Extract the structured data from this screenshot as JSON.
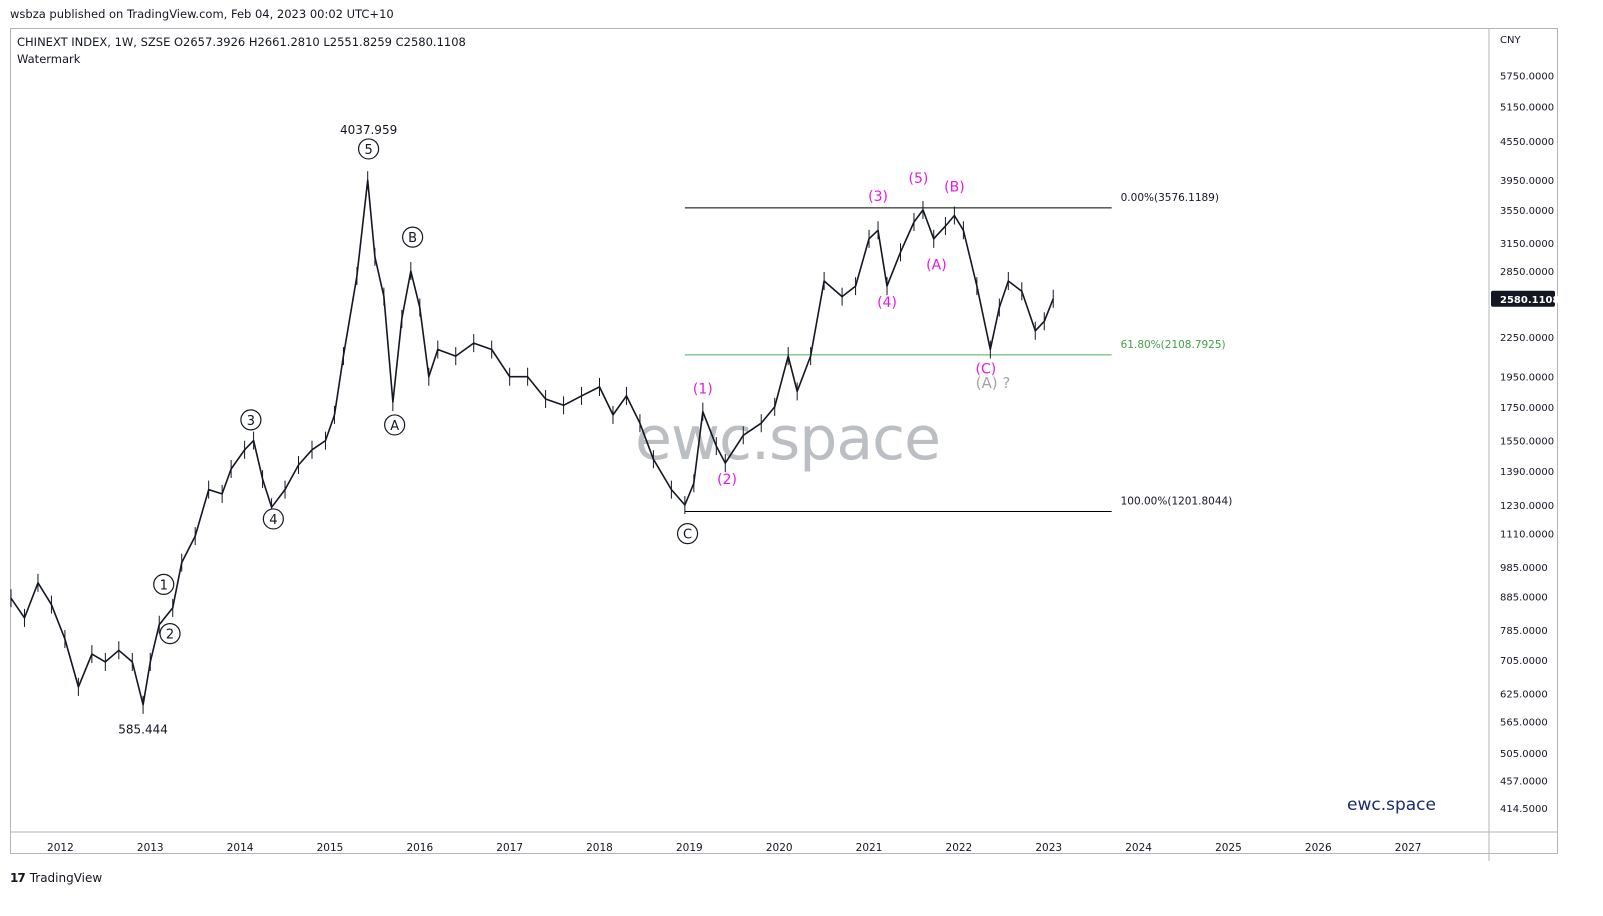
{
  "published": "wsbza published on TradingView.com, Feb 04, 2023 00:02 UTC+10",
  "legend": {
    "symbol_line": "CHINEXT INDEX, 1W, SZSE  O2657.3926  H2661.2810  L2551.8259  C2580.1108",
    "watermark_label": "Watermark"
  },
  "footer": {
    "logo": "17",
    "name": "TradingView"
  },
  "brand": "ewc.space",
  "watermark_text": "ewc.space",
  "colors": {
    "wave_primary": "#131722",
    "wave_magenta": "#e619e6",
    "fib_line": "#000000",
    "fib_green": "#4caf50",
    "price_label_bg": "#131722",
    "alt_label": "#a6a6a6"
  },
  "chart_data": {
    "type": "line",
    "title": "CHINEXT INDEX",
    "currency_label": "CNY",
    "y_scale": "log",
    "ylim": [
      380,
      6800
    ],
    "xlim": [
      2011.45,
      2027.9
    ],
    "x_ticks": [
      "2012",
      "2013",
      "2014",
      "2015",
      "2016",
      "2017",
      "2018",
      "2019",
      "2020",
      "2021",
      "2022",
      "2023",
      "2024",
      "2025",
      "2026",
      "2027"
    ],
    "y_ticks": [
      "5750.0000",
      "5150.0000",
      "4550.0000",
      "3950.0000",
      "3550.0000",
      "3150.0000",
      "2850.0000",
      "2580.1108",
      "2250.0000",
      "1950.0000",
      "1750.0000",
      "1550.0000",
      "1390.0000",
      "1230.0000",
      "1110.0000",
      "985.0000",
      "885.0000",
      "785.0000",
      "705.0000",
      "625.0000",
      "565.0000",
      "505.0000",
      "457.0000",
      "414.5000"
    ],
    "last_price": "2580.1108",
    "series": [
      {
        "values": [
          [
            2011.45,
            880
          ],
          [
            2011.6,
            820
          ],
          [
            2011.75,
            930
          ],
          [
            2011.9,
            860
          ],
          [
            2012.05,
            760
          ],
          [
            2012.2,
            640
          ],
          [
            2012.35,
            720
          ],
          [
            2012.5,
            700
          ],
          [
            2012.65,
            730
          ],
          [
            2012.8,
            700
          ],
          [
            2012.92,
            600
          ],
          [
            2013.0,
            700
          ],
          [
            2013.1,
            800
          ],
          [
            2013.25,
            850
          ],
          [
            2013.35,
            1000
          ],
          [
            2013.5,
            1100
          ],
          [
            2013.65,
            1300
          ],
          [
            2013.8,
            1280
          ],
          [
            2013.9,
            1400
          ],
          [
            2014.05,
            1500
          ],
          [
            2014.15,
            1550
          ],
          [
            2014.25,
            1350
          ],
          [
            2014.35,
            1220
          ],
          [
            2014.5,
            1300
          ],
          [
            2014.65,
            1420
          ],
          [
            2014.8,
            1500
          ],
          [
            2014.95,
            1550
          ],
          [
            2015.05,
            1700
          ],
          [
            2015.15,
            2100
          ],
          [
            2015.3,
            2800
          ],
          [
            2015.42,
            3950
          ],
          [
            2015.5,
            3000
          ],
          [
            2015.6,
            2600
          ],
          [
            2015.7,
            1780
          ],
          [
            2015.8,
            2400
          ],
          [
            2015.9,
            2850
          ],
          [
            2016.0,
            2500
          ],
          [
            2016.1,
            1950
          ],
          [
            2016.2,
            2150
          ],
          [
            2016.4,
            2100
          ],
          [
            2016.6,
            2200
          ],
          [
            2016.8,
            2150
          ],
          [
            2017.0,
            1950
          ],
          [
            2017.2,
            1950
          ],
          [
            2017.4,
            1800
          ],
          [
            2017.6,
            1760
          ],
          [
            2017.8,
            1820
          ],
          [
            2018.0,
            1880
          ],
          [
            2018.15,
            1700
          ],
          [
            2018.3,
            1820
          ],
          [
            2018.45,
            1650
          ],
          [
            2018.6,
            1450
          ],
          [
            2018.8,
            1300
          ],
          [
            2018.95,
            1230
          ],
          [
            2019.05,
            1330
          ],
          [
            2019.15,
            1720
          ],
          [
            2019.3,
            1520
          ],
          [
            2019.4,
            1430
          ],
          [
            2019.6,
            1580
          ],
          [
            2019.8,
            1650
          ],
          [
            2019.95,
            1750
          ],
          [
            2020.1,
            2100
          ],
          [
            2020.2,
            1850
          ],
          [
            2020.35,
            2100
          ],
          [
            2020.5,
            2750
          ],
          [
            2020.7,
            2600
          ],
          [
            2020.85,
            2700
          ],
          [
            2021.0,
            3200
          ],
          [
            2021.1,
            3300
          ],
          [
            2021.2,
            2700
          ],
          [
            2021.35,
            3050
          ],
          [
            2021.5,
            3400
          ],
          [
            2021.6,
            3550
          ],
          [
            2021.72,
            3200
          ],
          [
            2021.85,
            3350
          ],
          [
            2021.95,
            3480
          ],
          [
            2022.05,
            3300
          ],
          [
            2022.2,
            2700
          ],
          [
            2022.35,
            2150
          ],
          [
            2022.45,
            2500
          ],
          [
            2022.55,
            2750
          ],
          [
            2022.7,
            2650
          ],
          [
            2022.85,
            2300
          ],
          [
            2022.95,
            2380
          ],
          [
            2023.05,
            2580
          ]
        ]
      }
    ],
    "price_marks": [
      {
        "label": "4037.959",
        "x": 2015.43,
        "y": 4037.959
      },
      {
        "label": "585.444",
        "x": 2012.92,
        "y": 585.444
      }
    ],
    "fib_levels": [
      {
        "label": "0.00%(3576.1189)",
        "value": 3576.1189,
        "x_start": 2018.95,
        "x_end": 2023.7
      },
      {
        "label": "61.80%(2108.7925)",
        "value": 2108.7925,
        "x_start": 2018.95,
        "x_end": 2023.7
      },
      {
        "label": "100.00%(1201.8044)",
        "value": 1201.8044,
        "x_start": 2018.95,
        "x_end": 2023.7
      }
    ],
    "wave_labels_circled": [
      {
        "label": "1",
        "x": 2013.15,
        "y": 925
      },
      {
        "label": "2",
        "x": 2013.22,
        "y": 775
      },
      {
        "label": "3",
        "x": 2014.12,
        "y": 1670
      },
      {
        "label": "4",
        "x": 2014.37,
        "y": 1170
      },
      {
        "label": "5",
        "x": 2015.43,
        "y": 4420
      },
      {
        "label": "A",
        "x": 2015.72,
        "y": 1640
      },
      {
        "label": "B",
        "x": 2015.92,
        "y": 3220
      },
      {
        "label": "C",
        "x": 2018.98,
        "y": 1110
      }
    ],
    "wave_labels_paren": [
      {
        "label": "(1)",
        "x": 2019.15,
        "y": 1870
      },
      {
        "label": "(2)",
        "x": 2019.42,
        "y": 1350
      },
      {
        "label": "(3)",
        "x": 2021.1,
        "y": 3730
      },
      {
        "label": "(4)",
        "x": 2021.2,
        "y": 2550
      },
      {
        "label": "(5)",
        "x": 2021.55,
        "y": 3980
      },
      {
        "label": "(B)",
        "x": 2021.95,
        "y": 3860
      },
      {
        "label": "(A)",
        "x": 2021.75,
        "y": 2920
      },
      {
        "label": "(C)",
        "x": 2022.3,
        "y": 2010
      }
    ],
    "alt_label": {
      "label": "(A) ?",
      "x": 2022.38,
      "y": 1905
    }
  }
}
